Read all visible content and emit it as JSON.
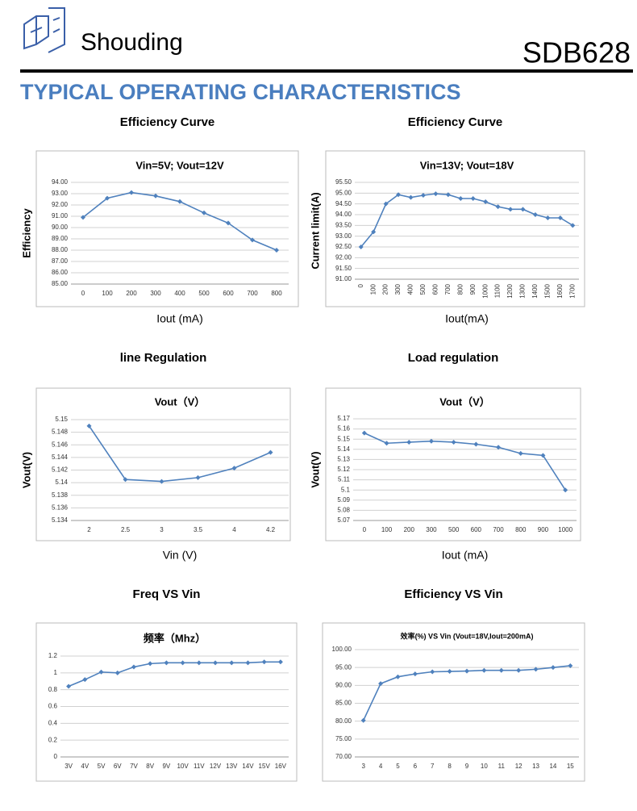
{
  "header": {
    "brand": "Shouding",
    "part": "SDB628",
    "section": "TYPICAL OPERATING CHARACTERISTICS"
  },
  "chart_data": [
    {
      "type": "line",
      "title": "Efficiency Curve",
      "subtitle": "Vin=5V; Vout=12V",
      "x_label": "Iout (mA)",
      "y_label": "Efficiency",
      "color": "#4f81bd",
      "categories": [
        "0",
        "100",
        "200",
        "300",
        "400",
        "500",
        "600",
        "700",
        "800"
      ],
      "values": [
        90.9,
        92.6,
        93.1,
        92.8,
        92.3,
        91.3,
        90.4,
        88.9,
        88.0
      ],
      "ylim": [
        85,
        94
      ],
      "yticks": [
        {
          "value": 85,
          "label": "85.00"
        },
        {
          "value": 86,
          "label": "86.00"
        },
        {
          "value": 87,
          "label": "87.00"
        },
        {
          "value": 88,
          "label": "88.00"
        },
        {
          "value": 89,
          "label": "89.00"
        },
        {
          "value": 90,
          "label": "90.00"
        },
        {
          "value": 91,
          "label": "91.00"
        },
        {
          "value": 92,
          "label": "92.00"
        },
        {
          "value": 93,
          "label": "93.00"
        },
        {
          "value": 94,
          "label": "94.00"
        }
      ],
      "grid": true
    },
    {
      "type": "line",
      "title": "Efficiency Curve",
      "subtitle": "Vin=13V; Vout=18V",
      "x_label": "Iout(mA)",
      "y_label": "Current limit(A)",
      "color": "#4f81bd",
      "categories": [
        "0",
        "100",
        "200",
        "300",
        "400",
        "500",
        "600",
        "700",
        "800",
        "900",
        "1000",
        "1100",
        "1200",
        "1300",
        "1400",
        "1500",
        "1600",
        "1700"
      ],
      "values": [
        92.5,
        93.2,
        94.5,
        94.93,
        94.8,
        94.9,
        94.97,
        94.93,
        94.75,
        94.75,
        94.6,
        94.37,
        94.25,
        94.25,
        94.0,
        93.85,
        93.85,
        93.5
      ],
      "ylim": [
        91,
        95.5
      ],
      "yticks": [
        {
          "value": 91,
          "label": "91.00"
        },
        {
          "value": 91.5,
          "label": "91.50"
        },
        {
          "value": 92,
          "label": "92.00"
        },
        {
          "value": 92.5,
          "label": "92.50"
        },
        {
          "value": 93,
          "label": "93.00"
        },
        {
          "value": 93.5,
          "label": "93.50"
        },
        {
          "value": 94,
          "label": "94.00"
        },
        {
          "value": 94.5,
          "label": "94.50"
        },
        {
          "value": 95,
          "label": "95.00"
        },
        {
          "value": 95.5,
          "label": "95.50"
        }
      ],
      "grid": true
    },
    {
      "type": "line",
      "title": "line Regulation",
      "subtitle": "Vout（V）",
      "x_label": "Vin (V)",
      "y_label": "Vout(V)",
      "color": "#4f81bd",
      "categories": [
        "2",
        "2.5",
        "3",
        "3.5",
        "4",
        "4.2"
      ],
      "values": [
        5.149,
        5.1405,
        5.1402,
        5.1408,
        5.1423,
        5.1448
      ],
      "ylim": [
        5.134,
        5.15
      ],
      "yticks": [
        5.134,
        5.136,
        5.138,
        5.14,
        5.142,
        5.144,
        5.146,
        5.148,
        5.15
      ],
      "grid": true
    },
    {
      "type": "line",
      "title": "Load regulation",
      "subtitle": "Vout（V）",
      "x_label": "Iout (mA)",
      "y_label": "Vout(V)",
      "color": "#4f81bd",
      "categories": [
        "0",
        "100",
        "200",
        "300",
        "500",
        "600",
        "700",
        "800",
        "900",
        "1000"
      ],
      "values": [
        5.156,
        5.146,
        5.147,
        5.148,
        5.147,
        5.145,
        5.142,
        5.136,
        5.134,
        5.1
      ],
      "ylim": [
        5.07,
        5.17
      ],
      "yticks": [
        5.07,
        5.08,
        5.09,
        5.1,
        5.11,
        5.12,
        5.13,
        5.14,
        5.15,
        5.16,
        5.17
      ],
      "grid": true
    },
    {
      "type": "line",
      "title": "Freq VS Vin",
      "subtitle": "频率（Mhz）",
      "color": "#4f81bd",
      "categories": [
        "3V",
        "4V",
        "5V",
        "6V",
        "7V",
        "8V",
        "9V",
        "10V",
        "11V",
        "12V",
        "13V",
        "14V",
        "15V",
        "16V"
      ],
      "values": [
        0.84,
        0.92,
        1.01,
        1.0,
        1.07,
        1.11,
        1.12,
        1.12,
        1.12,
        1.12,
        1.12,
        1.12,
        1.13,
        1.13
      ],
      "ylim": [
        0,
        1.2
      ],
      "yticks": [
        0,
        0.2,
        0.4,
        0.6,
        0.8,
        1,
        1.2
      ],
      "grid": true
    },
    {
      "type": "line",
      "title": "Efficiency VS Vin",
      "subtitle": "效率(%) VS  Vin (Vout=18V,Iout=200mA)",
      "color": "#4f81bd",
      "categories": [
        "3",
        "4",
        "5",
        "6",
        "7",
        "8",
        "9",
        "10",
        "11",
        "12",
        "13",
        "14",
        "15"
      ],
      "values": [
        80.2,
        90.5,
        92.4,
        93.2,
        93.8,
        93.9,
        94.0,
        94.2,
        94.2,
        94.2,
        94.5,
        95.0,
        95.5
      ],
      "ylim": [
        70,
        100
      ],
      "yticks": [
        {
          "value": 70,
          "label": "70.00"
        },
        {
          "value": 75,
          "label": "75.00"
        },
        {
          "value": 80,
          "label": "80.00"
        },
        {
          "value": 85,
          "label": "85.00"
        },
        {
          "value": 90,
          "label": "90.00"
        },
        {
          "value": 95,
          "label": "95.00"
        },
        {
          "value": 100,
          "label": "100.00"
        }
      ],
      "grid": true
    }
  ]
}
